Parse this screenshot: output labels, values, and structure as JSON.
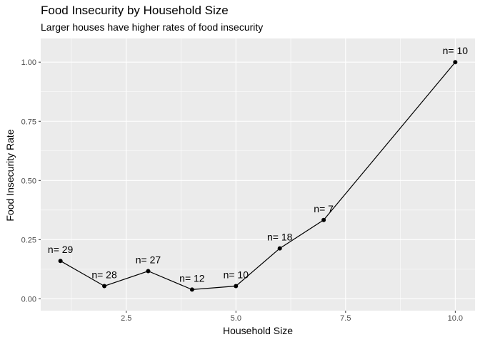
{
  "chart_data": {
    "type": "line",
    "title": "Food Insecurity by Household Size",
    "subtitle": "Larger houses have higher rates of food insecurity",
    "xlabel": "Household Size",
    "ylabel": "Food Insecurity  Rate",
    "x": [
      1,
      2,
      3,
      4,
      5,
      6,
      7,
      10
    ],
    "y": [
      0.16,
      0.054,
      0.117,
      0.039,
      0.054,
      0.213,
      0.333,
      1.0
    ],
    "point_labels": [
      "n= 29",
      "n= 28",
      "n= 27",
      "n= 12",
      "n= 10",
      "n= 18",
      "n= 7",
      "n= 10"
    ],
    "xlim": [
      0.55,
      10.45
    ],
    "ylim": [
      -0.05,
      1.1
    ],
    "x_ticks": [
      2.5,
      5.0,
      7.5,
      10.0
    ],
    "x_tick_labels": [
      "2.5",
      "5.0",
      "7.5",
      "10.0"
    ],
    "y_ticks": [
      0.0,
      0.25,
      0.5,
      0.75,
      1.0
    ],
    "y_tick_labels": [
      "0.00",
      "0.25",
      "0.50",
      "0.75",
      "1.00"
    ],
    "grid": true,
    "legend": "none",
    "colors": {
      "panel_background": "#ebebeb",
      "grid_major": "#ffffff",
      "line": "#000000",
      "point": "#000000",
      "tick_text": "#4d4d4d"
    }
  }
}
